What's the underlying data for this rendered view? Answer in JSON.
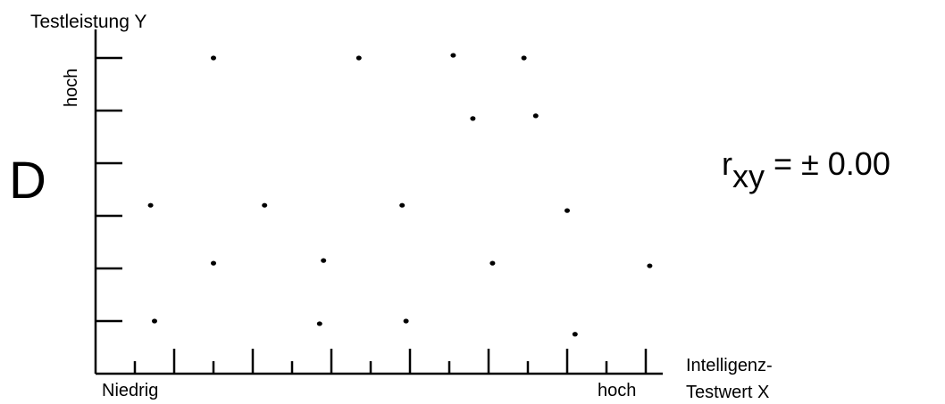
{
  "panel_label": "D",
  "coefficient": {
    "symbol": "r",
    "subscript": "xy",
    "value_text": " = ± 0.00"
  },
  "chart_data": {
    "type": "scatter",
    "title": "",
    "xlabel": [
      "Intelligenz-",
      "Testwert X"
    ],
    "ylabel": "Testleistung Y",
    "x_tick_labels": {
      "low": "Niedrig",
      "high": "hoch"
    },
    "y_tick_labels": {
      "high": "hoch"
    },
    "xlim": [
      0,
      7
    ],
    "ylim": [
      0,
      6
    ],
    "x_major_ticks": [
      1,
      2,
      3,
      4,
      5,
      6,
      7
    ],
    "x_minor_ticks": [
      0.5,
      1.5,
      2.5,
      3.5,
      4.5,
      5.5,
      6.5
    ],
    "y_ticks": [
      1,
      2,
      3,
      4,
      5,
      6
    ],
    "grid": false,
    "legend": "none",
    "correlation": 0.0,
    "points": [
      {
        "x": 0.75,
        "y": 1.0
      },
      {
        "x": 1.5,
        "y": 6.0
      },
      {
        "x": 1.5,
        "y": 2.1
      },
      {
        "x": 0.7,
        "y": 3.2
      },
      {
        "x": 2.15,
        "y": 3.2
      },
      {
        "x": 2.9,
        "y": 2.15
      },
      {
        "x": 2.85,
        "y": 0.95
      },
      {
        "x": 3.35,
        "y": 6.0
      },
      {
        "x": 3.9,
        "y": 3.2
      },
      {
        "x": 3.95,
        "y": 1.0
      },
      {
        "x": 4.55,
        "y": 6.05
      },
      {
        "x": 4.8,
        "y": 4.85
      },
      {
        "x": 5.05,
        "y": 2.1
      },
      {
        "x": 5.45,
        "y": 6.0
      },
      {
        "x": 5.6,
        "y": 4.9
      },
      {
        "x": 6.0,
        "y": 3.1
      },
      {
        "x": 6.1,
        "y": 0.75
      },
      {
        "x": 7.05,
        "y": 2.05
      }
    ]
  }
}
